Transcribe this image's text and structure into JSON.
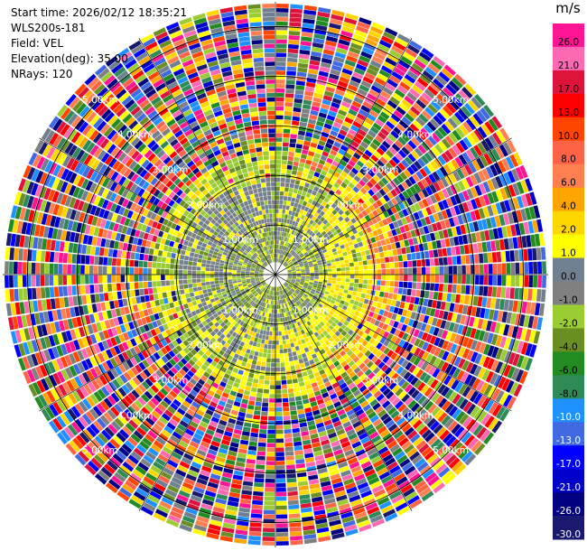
{
  "header": {
    "start_time": "Start time: 2026/02/12 18:35:21",
    "instrument": "WLS200s-181",
    "field": "Field: VEL",
    "elevation": "Elevation(deg): 35.00",
    "nrays": "NRays: 120"
  },
  "ppi": {
    "nrays": 120,
    "range_rings_km": [
      1,
      2,
      3,
      4,
      5
    ],
    "ring_labels": [
      "1.00km",
      "2.00km",
      "3.00km",
      "4.00km",
      "5.00km"
    ],
    "max_range_km": 5.5
  },
  "colorbar": {
    "unit": "m/s",
    "ticks": [
      "26.0",
      "21.0",
      "17.0",
      "13.0",
      "10.0",
      "8.0",
      "6.0",
      "4.0",
      "2.0",
      "1.0",
      "0.0",
      "-1.0",
      "-2.0",
      "-4.0",
      "-6.0",
      "-8.0",
      "-10.0",
      "-13.0",
      "-17.0",
      "-21.0",
      "-26.0",
      "-30.0"
    ],
    "colors": [
      "#ff1493",
      "#ff69b4",
      "#dc143c",
      "#ff0000",
      "#ff4500",
      "#ff6347",
      "#ff7f50",
      "#ffa500",
      "#ffd700",
      "#ffff00",
      "#708090",
      "#808080",
      "#9acd32",
      "#6b8e23",
      "#228b22",
      "#2e8b57",
      "#1e90ff",
      "#4169e1",
      "#0000ff",
      "#0000cd",
      "#000080",
      "#191970"
    ]
  }
}
